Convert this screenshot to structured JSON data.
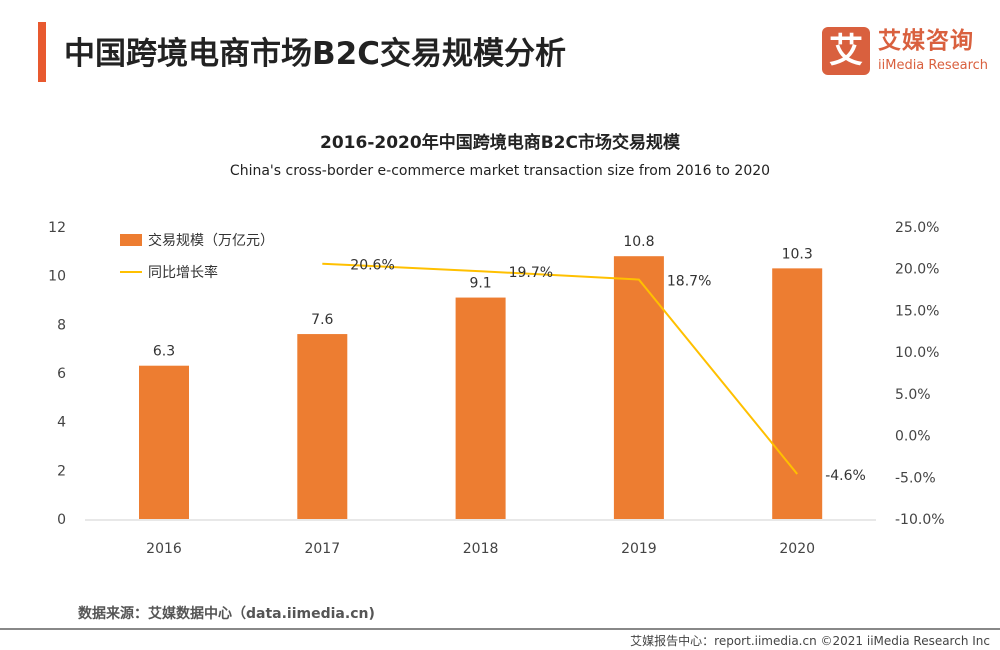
{
  "header": {
    "title": "中国跨境电商市场B2C交易规模分析",
    "logo_mark": "艾",
    "logo_cn": "艾媒咨询",
    "logo_en": "iiMedia Research"
  },
  "chart_data": {
    "type": "bar+line",
    "title": "2016-2020年中国跨境电商B2C市场交易规模",
    "subtitle": "China's cross-border e-commerce market transaction size from 2016 to 2020",
    "categories": [
      "2016",
      "2017",
      "2018",
      "2019",
      "2020"
    ],
    "series": [
      {
        "name": "交易规模（万亿元）",
        "type": "bar",
        "axis": "left",
        "color": "#ed7d31",
        "values": [
          6.3,
          7.6,
          9.1,
          10.8,
          10.3
        ],
        "labels": [
          "6.3",
          "7.6",
          "9.1",
          "10.8",
          "10.3"
        ]
      },
      {
        "name": "同比增长率",
        "type": "line",
        "axis": "right",
        "color": "#ffc000",
        "values": [
          null,
          20.6,
          19.7,
          18.7,
          -4.6
        ],
        "labels": [
          "",
          "20.6%",
          "19.7%",
          "18.7%",
          "-4.6%"
        ]
      }
    ],
    "y_left": {
      "ylim": [
        0,
        12
      ],
      "ticks": [
        "0",
        "2",
        "4",
        "6",
        "8",
        "10",
        "12"
      ]
    },
    "y_right": {
      "ylim": [
        -10,
        25
      ],
      "ticks": [
        "-10.0%",
        "-5.0%",
        "0.0%",
        "5.0%",
        "10.0%",
        "15.0%",
        "20.0%",
        "25.0%"
      ]
    },
    "grid": false,
    "legend": "top-left"
  },
  "footer": {
    "source": "数据来源：艾媒数据中心（data.iimedia.cn)",
    "copyright": "艾媒报告中心：report.iimedia.cn  ©2021  iiMedia Research Inc"
  }
}
